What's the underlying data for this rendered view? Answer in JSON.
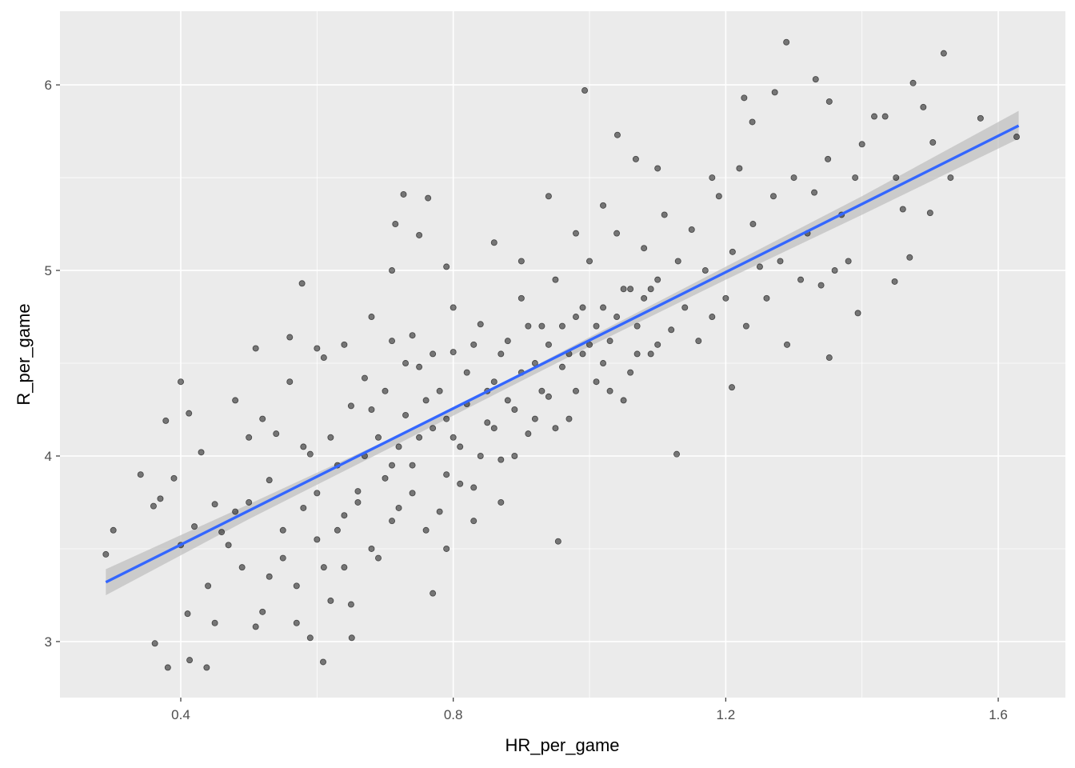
{
  "chart_data": {
    "type": "scatter",
    "title": "",
    "xlabel": "HR_per_game",
    "ylabel": "R_per_game",
    "xlim": [
      0.2227,
      1.6986
    ],
    "ylim": [
      2.698,
      6.397
    ],
    "x_major_ticks": [
      0.4,
      0.8,
      1.2,
      1.6
    ],
    "x_tick_labels": [
      "0.4",
      "0.8",
      "1.2",
      "1.6"
    ],
    "x_minor_ticks": [
      0.6,
      1.0,
      1.4
    ],
    "y_major_ticks": [
      3,
      4,
      5,
      6
    ],
    "y_tick_labels": [
      "3",
      "4",
      "5",
      "6"
    ],
    "y_minor_ticks": [
      3.5,
      4.5,
      5.5
    ],
    "grid": true,
    "colors": {
      "panel": "#EBEBEB",
      "grid": "#FFFFFF",
      "point": "#000000",
      "fit": "#3366FF",
      "band": "#BEBEBE"
    },
    "point_alpha": 0.5,
    "fit_line": {
      "method": "lm",
      "x": [
        0.29,
        1.63
      ],
      "y": [
        3.32,
        5.78
      ]
    },
    "se_band": {
      "x": [
        0.29,
        0.5,
        0.7,
        0.86,
        1.0,
        1.2,
        1.4,
        1.63
      ],
      "lower": [
        3.25,
        3.66,
        4.03,
        4.33,
        4.59,
        4.95,
        5.3,
        5.71
      ],
      "upper": [
        3.39,
        3.74,
        4.08,
        4.37,
        4.64,
        5.02,
        5.4,
        5.86
      ]
    },
    "points": [
      [
        0.29,
        3.47
      ],
      [
        0.301,
        3.6
      ],
      [
        0.341,
        3.9
      ],
      [
        0.362,
        2.99
      ],
      [
        0.381,
        2.86
      ],
      [
        0.4,
        4.4
      ],
      [
        0.413,
        2.9
      ],
      [
        0.438,
        2.86
      ],
      [
        0.378,
        4.19
      ],
      [
        0.412,
        4.23
      ],
      [
        0.578,
        4.93
      ],
      [
        0.727,
        5.41
      ],
      [
        0.715,
        5.25
      ],
      [
        0.763,
        5.39
      ],
      [
        0.993,
        5.97
      ],
      [
        1.289,
        6.23
      ],
      [
        1.332,
        6.03
      ],
      [
        1.52,
        6.17
      ],
      [
        1.475,
        6.01
      ],
      [
        1.627,
        5.72
      ],
      [
        1.574,
        5.82
      ],
      [
        1.394,
        4.77
      ],
      [
        1.448,
        4.94
      ],
      [
        1.352,
        4.53
      ],
      [
        1.209,
        4.37
      ],
      [
        1.128,
        4.01
      ],
      [
        0.954,
        3.54
      ],
      [
        0.77,
        3.26
      ],
      [
        0.651,
        3.02
      ],
      [
        0.609,
        2.89
      ],
      [
        0.51,
        3.08
      ],
      [
        1.041,
        5.73
      ],
      [
        1.068,
        5.6
      ],
      [
        1.418,
        5.83
      ],
      [
        1.434,
        5.83
      ],
      [
        1.504,
        5.69
      ],
      [
        1.352,
        5.91
      ],
      [
        1.272,
        5.96
      ],
      [
        1.227,
        5.93
      ],
      [
        1.239,
        5.8
      ],
      [
        0.36,
        3.73
      ],
      [
        0.37,
        3.77
      ],
      [
        0.39,
        3.88
      ],
      [
        0.4,
        3.52
      ],
      [
        0.41,
        3.15
      ],
      [
        0.42,
        3.62
      ],
      [
        0.43,
        4.02
      ],
      [
        0.44,
        3.3
      ],
      [
        0.45,
        3.74
      ],
      [
        0.46,
        3.59
      ],
      [
        0.47,
        3.52
      ],
      [
        0.48,
        4.3
      ],
      [
        0.49,
        3.4
      ],
      [
        0.5,
        3.75
      ],
      [
        0.51,
        4.58
      ],
      [
        0.52,
        3.16
      ],
      [
        0.53,
        3.87
      ],
      [
        0.54,
        4.12
      ],
      [
        0.55,
        3.45
      ],
      [
        0.56,
        4.64
      ],
      [
        0.57,
        3.3
      ],
      [
        0.58,
        3.72
      ],
      [
        0.59,
        4.01
      ],
      [
        0.6,
        3.55
      ],
      [
        0.61,
        4.53
      ],
      [
        0.62,
        3.22
      ],
      [
        0.63,
        3.95
      ],
      [
        0.64,
        3.68
      ],
      [
        0.65,
        4.27
      ],
      [
        0.66,
        3.81
      ],
      [
        0.67,
        4.42
      ],
      [
        0.68,
        3.5
      ],
      [
        0.69,
        4.1
      ],
      [
        0.7,
        3.88
      ],
      [
        0.71,
        4.62
      ],
      [
        0.72,
        3.72
      ],
      [
        0.73,
        4.22
      ],
      [
        0.74,
        3.95
      ],
      [
        0.75,
        4.48
      ],
      [
        0.76,
        3.6
      ],
      [
        0.77,
        4.15
      ],
      [
        0.78,
        4.35
      ],
      [
        0.79,
        3.9
      ],
      [
        0.8,
        4.56
      ],
      [
        0.81,
        4.05
      ],
      [
        0.82,
        4.28
      ],
      [
        0.83,
        3.83
      ],
      [
        0.84,
        4.71
      ],
      [
        0.85,
        4.18
      ],
      [
        0.86,
        4.4
      ],
      [
        0.87,
        3.98
      ],
      [
        0.88,
        4.62
      ],
      [
        0.89,
        4.25
      ],
      [
        0.9,
        4.85
      ],
      [
        0.91,
        4.12
      ],
      [
        0.92,
        4.5
      ],
      [
        0.93,
        4.7
      ],
      [
        0.94,
        4.32
      ],
      [
        0.95,
        4.95
      ],
      [
        0.96,
        4.48
      ],
      [
        0.97,
        4.2
      ],
      [
        0.98,
        4.75
      ],
      [
        0.99,
        4.55
      ],
      [
        1.0,
        5.05
      ],
      [
        1.01,
        4.4
      ],
      [
        1.02,
        4.8
      ],
      [
        1.03,
        4.62
      ],
      [
        1.04,
        5.2
      ],
      [
        1.05,
        4.3
      ],
      [
        1.06,
        4.9
      ],
      [
        1.07,
        4.7
      ],
      [
        1.08,
        5.12
      ],
      [
        1.09,
        4.55
      ],
      [
        1.1,
        4.95
      ],
      [
        1.11,
        5.3
      ],
      [
        1.12,
        4.68
      ],
      [
        1.13,
        5.05
      ],
      [
        1.14,
        4.8
      ],
      [
        1.15,
        5.22
      ],
      [
        1.16,
        4.62
      ],
      [
        1.17,
        5.0
      ],
      [
        1.18,
        4.75
      ],
      [
        1.19,
        5.4
      ],
      [
        1.2,
        4.85
      ],
      [
        1.21,
        5.1
      ],
      [
        1.22,
        5.55
      ],
      [
        1.23,
        4.7
      ],
      [
        1.24,
        5.25
      ],
      [
        1.25,
        5.02
      ],
      [
        1.26,
        4.85
      ],
      [
        1.27,
        5.4
      ],
      [
        1.28,
        5.05
      ],
      [
        1.29,
        4.6
      ],
      [
        1.3,
        5.5
      ],
      [
        1.31,
        4.95
      ],
      [
        1.32,
        5.2
      ],
      [
        1.33,
        5.42
      ],
      [
        1.34,
        4.92
      ],
      [
        1.35,
        5.6
      ],
      [
        1.36,
        5.0
      ],
      [
        1.37,
        5.3
      ],
      [
        1.38,
        5.05
      ],
      [
        1.39,
        5.5
      ],
      [
        1.4,
        5.68
      ],
      [
        1.45,
        5.5
      ],
      [
        1.46,
        5.33
      ],
      [
        1.47,
        5.07
      ],
      [
        1.5,
        5.31
      ],
      [
        1.53,
        5.5
      ],
      [
        1.49,
        5.88
      ],
      [
        0.55,
        3.6
      ],
      [
        0.58,
        4.05
      ],
      [
        0.62,
        4.1
      ],
      [
        0.64,
        3.4
      ],
      [
        0.66,
        3.75
      ],
      [
        0.68,
        4.25
      ],
      [
        0.7,
        4.35
      ],
      [
        0.72,
        4.05
      ],
      [
        0.74,
        3.8
      ],
      [
        0.76,
        4.3
      ],
      [
        0.78,
        3.7
      ],
      [
        0.8,
        4.1
      ],
      [
        0.82,
        4.45
      ],
      [
        0.84,
        4.0
      ],
      [
        0.86,
        4.15
      ],
      [
        0.88,
        4.3
      ],
      [
        0.9,
        4.45
      ],
      [
        0.92,
        4.2
      ],
      [
        0.94,
        4.6
      ],
      [
        0.96,
        4.7
      ],
      [
        0.98,
        4.35
      ],
      [
        1.0,
        4.6
      ],
      [
        1.02,
        4.5
      ],
      [
        1.04,
        4.75
      ],
      [
        1.06,
        4.45
      ],
      [
        1.08,
        4.85
      ],
      [
        1.1,
        4.6
      ],
      [
        0.6,
        3.8
      ],
      [
        0.63,
        3.6
      ],
      [
        0.67,
        4.0
      ],
      [
        0.71,
        3.95
      ],
      [
        0.73,
        4.5
      ],
      [
        0.75,
        4.1
      ],
      [
        0.77,
        4.55
      ],
      [
        0.79,
        4.2
      ],
      [
        0.81,
        3.85
      ],
      [
        0.83,
        4.6
      ],
      [
        0.85,
        4.35
      ],
      [
        0.87,
        4.55
      ],
      [
        0.89,
        4.0
      ],
      [
        0.91,
        4.7
      ],
      [
        0.93,
        4.35
      ],
      [
        0.95,
        4.15
      ],
      [
        0.97,
        4.55
      ],
      [
        0.99,
        4.8
      ],
      [
        1.01,
        4.7
      ],
      [
        1.03,
        4.35
      ],
      [
        1.05,
        4.9
      ],
      [
        1.07,
        4.55
      ],
      [
        1.09,
        4.9
      ],
      [
        0.53,
        3.35
      ],
      [
        0.57,
        3.1
      ],
      [
        0.59,
        3.02
      ],
      [
        0.61,
        3.4
      ],
      [
        0.65,
        3.2
      ],
      [
        0.69,
        3.45
      ],
      [
        0.71,
        3.65
      ],
      [
        0.79,
        3.5
      ],
      [
        0.83,
        3.65
      ],
      [
        0.87,
        3.75
      ],
      [
        0.45,
        3.1
      ],
      [
        0.48,
        3.7
      ],
      [
        0.5,
        4.1
      ],
      [
        0.52,
        4.2
      ],
      [
        0.56,
        4.4
      ],
      [
        0.6,
        4.58
      ],
      [
        0.64,
        4.6
      ],
      [
        0.68,
        4.75
      ],
      [
        0.74,
        4.65
      ],
      [
        0.8,
        4.8
      ],
      [
        0.86,
        5.15
      ],
      [
        0.9,
        5.05
      ],
      [
        0.94,
        5.4
      ],
      [
        0.98,
        5.2
      ],
      [
        1.02,
        5.35
      ],
      [
        0.79,
        5.02
      ],
      [
        0.71,
        5.0
      ],
      [
        0.75,
        5.19
      ],
      [
        1.1,
        5.55
      ],
      [
        1.18,
        5.5
      ]
    ]
  }
}
